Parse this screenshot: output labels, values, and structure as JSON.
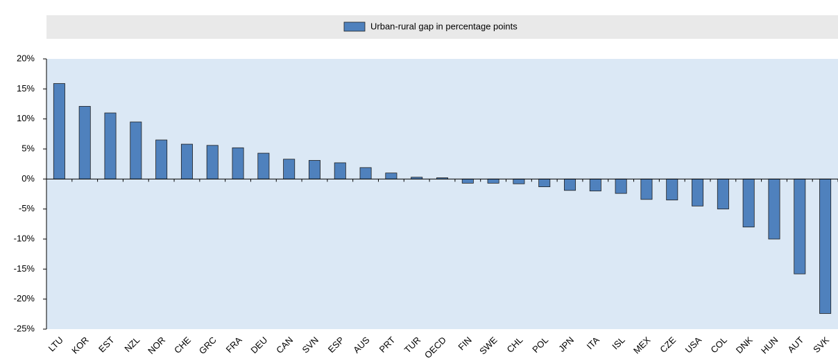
{
  "chart_data": {
    "type": "bar",
    "legend_label": "Urban-rural gap in percentage points",
    "series": [
      {
        "name": "Urban-rural gap in percentage points",
        "color": "#4f81bd",
        "values": [
          15.9,
          12.1,
          11.0,
          9.5,
          6.5,
          5.8,
          5.6,
          5.2,
          4.3,
          3.3,
          3.1,
          2.7,
          1.9,
          1.0,
          0.3,
          0.2,
          -0.7,
          -0.7,
          -0.8,
          -1.3,
          -1.9,
          -2.0,
          -2.4,
          -3.4,
          -3.5,
          -4.5,
          -5.0,
          -8.0,
          -10.0,
          -15.8,
          -22.4
        ]
      }
    ],
    "categories": [
      "LTU",
      "KOR",
      "EST",
      "NZL",
      "NOR",
      "CHE",
      "GRC",
      "FRA",
      "DEU",
      "CAN",
      "SVN",
      "ESP",
      "AUS",
      "PRT",
      "TUR",
      "OECD",
      "FIN",
      "SWE",
      "CHL",
      "POL",
      "JPN",
      "ITA",
      "ISL",
      "MEX",
      "CZE",
      "USA",
      "COL",
      "DNK",
      "HUN",
      "AUT",
      "SVK"
    ],
    "ylim": [
      -25,
      20
    ],
    "yticks": [
      {
        "value": -25,
        "label": "-25%"
      },
      {
        "value": -20,
        "label": "-20%"
      },
      {
        "value": -15,
        "label": "-15%"
      },
      {
        "value": -10,
        "label": "-10%"
      },
      {
        "value": -5,
        "label": "-5%"
      },
      {
        "value": 0,
        "label": "0%"
      },
      {
        "value": 5,
        "label": "5%"
      },
      {
        "value": 10,
        "label": "10%"
      },
      {
        "value": 15,
        "label": "15%"
      },
      {
        "value": 20,
        "label": "20%"
      }
    ],
    "grid": false
  }
}
